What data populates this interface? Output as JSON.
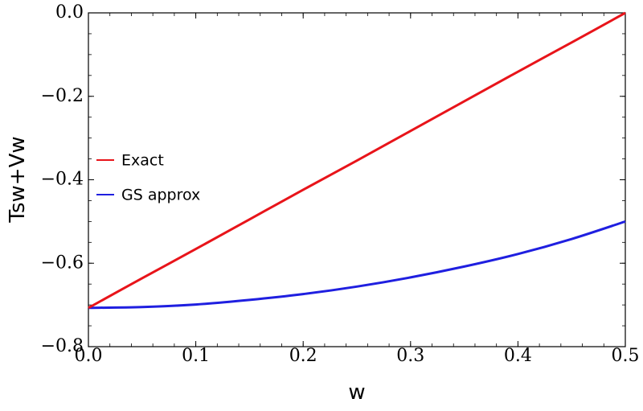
{
  "chart_data": {
    "type": "line",
    "xlabel": "w",
    "ylabel": "Tsw+Vw",
    "xlim": [
      0.0,
      0.5
    ],
    "ylim": [
      -0.8,
      0.0
    ],
    "x_ticks": [
      0.0,
      0.1,
      0.2,
      0.3,
      0.4,
      0.5
    ],
    "x_tick_labels": [
      "0.0",
      "0.1",
      "0.2",
      "0.3",
      "0.4",
      "0.5"
    ],
    "y_ticks": [
      -0.8,
      -0.6,
      -0.4,
      -0.2,
      0.0
    ],
    "y_tick_labels": [
      "−0.8",
      "−0.6",
      "−0.4",
      "−0.2",
      "0.0"
    ],
    "grid": false,
    "legend": {
      "position": "left-center"
    },
    "series": [
      {
        "name": "Exact",
        "color": "#e8141a",
        "x": [
          0.0,
          0.05,
          0.1,
          0.15,
          0.2,
          0.25,
          0.3,
          0.35,
          0.4,
          0.45,
          0.5
        ],
        "y": [
          -0.707,
          -0.636,
          -0.566,
          -0.495,
          -0.424,
          -0.354,
          -0.283,
          -0.212,
          -0.141,
          -0.071,
          0.0
        ]
      },
      {
        "name": "GS approx",
        "color": "#1f1fe0",
        "x": [
          0.0,
          0.05,
          0.1,
          0.15,
          0.2,
          0.25,
          0.3,
          0.35,
          0.4,
          0.45,
          0.5
        ],
        "y": [
          -0.707,
          -0.705,
          -0.699,
          -0.688,
          -0.674,
          -0.656,
          -0.634,
          -0.608,
          -0.578,
          -0.542,
          -0.5
        ]
      }
    ]
  }
}
